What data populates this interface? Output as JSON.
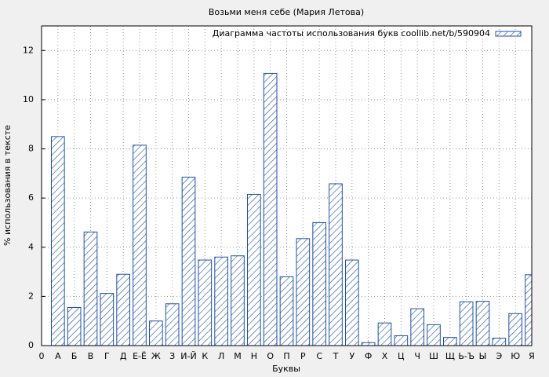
{
  "chart_data": {
    "type": "bar",
    "title": "Возьми меня себе (Мария Летова)",
    "xlabel": "Буквы",
    "ylabel": "% использования в тексте",
    "x": [
      1,
      2,
      3,
      4,
      5,
      6,
      7,
      8,
      9,
      10,
      11,
      12,
      13,
      14,
      15,
      16,
      17,
      18,
      19,
      20,
      21,
      22,
      23,
      24,
      25,
      26,
      27,
      28,
      29,
      30
    ],
    "series": [
      {
        "name": "Диаграмма частоты использования букв coollib.net/b/590904",
        "color": "#1f4fa8",
        "values": [
          8.5,
          1.55,
          4.62,
          2.12,
          2.9,
          8.15,
          1.0,
          1.7,
          6.85,
          3.48,
          3.6,
          3.65,
          6.15,
          11.07,
          2.8,
          4.35,
          5.0,
          6.58,
          3.48,
          0.12,
          0.92,
          0.4,
          1.5,
          0.85,
          0.33,
          1.78,
          1.8,
          0.3,
          1.3,
          2.88
        ]
      }
    ],
    "xlim": [
      0,
      30
    ],
    "xticks": [
      0,
      {
        "value": 1,
        "label": "А"
      },
      {
        "value": 2,
        "label": "Б"
      },
      {
        "value": 3,
        "label": "В"
      },
      {
        "value": 4,
        "label": "Г"
      },
      {
        "value": 5,
        "label": "Д"
      },
      {
        "value": 6,
        "label": "Е-Ё"
      },
      {
        "value": 7,
        "label": "Ж"
      },
      {
        "value": 8,
        "label": "З"
      },
      {
        "value": 9,
        "label": "И-Й"
      },
      {
        "value": 10,
        "label": "К"
      },
      {
        "value": 11,
        "label": "Л"
      },
      {
        "value": 12,
        "label": "М"
      },
      {
        "value": 13,
        "label": "Н"
      },
      {
        "value": 14,
        "label": "О"
      },
      {
        "value": 15,
        "label": "П"
      },
      {
        "value": 16,
        "label": "Р"
      },
      {
        "value": 17,
        "label": "С"
      },
      {
        "value": 18,
        "label": "Т"
      },
      {
        "value": 19,
        "label": "У"
      },
      {
        "value": 20,
        "label": "Ф"
      },
      {
        "value": 21,
        "label": "Х"
      },
      {
        "value": 22,
        "label": "Ц"
      },
      {
        "value": 23,
        "label": "Ч"
      },
      {
        "value": 24,
        "label": "Ш"
      },
      {
        "value": 25,
        "label": "Щ"
      },
      {
        "value": 26,
        "label": "Ь-Ъ"
      },
      {
        "value": 27,
        "label": "Ы"
      },
      {
        "value": 28,
        "label": "Э"
      },
      {
        "value": 29,
        "label": "Ю"
      },
      {
        "value": 30,
        "label": "Я"
      }
    ],
    "ylim": [
      0,
      13
    ],
    "yticks": [
      0,
      2,
      4,
      6,
      8,
      10,
      12
    ],
    "grid": true,
    "legend": "top-right"
  }
}
